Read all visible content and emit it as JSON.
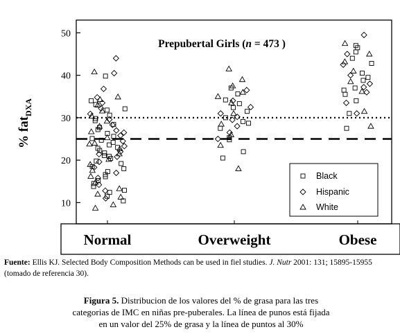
{
  "chart_data": {
    "type": "scatter",
    "title_main": "Prepubertal Girls (",
    "title_n": "n",
    "title_eq": " = 473 )",
    "ylabel_main": "% fat",
    "ylabel_sub": "DXA",
    "ylim": [
      5,
      53
    ],
    "yticks": [
      10,
      20,
      30,
      40,
      50
    ],
    "categories": [
      "Normal",
      "Overweight",
      "Obese"
    ],
    "reference_lines": [
      {
        "value": 30,
        "style": "dotted"
      },
      {
        "value": 25,
        "style": "dashed"
      }
    ],
    "legend": {
      "placement": "bottom-right",
      "entries": [
        {
          "label": "Black",
          "marker": "square"
        },
        {
          "label": "Hispanic",
          "marker": "diamond"
        },
        {
          "label": "White",
          "marker": "triangle"
        }
      ]
    },
    "series": [
      {
        "name": "Black",
        "marker": "square",
        "points": [
          [
            1,
            11.5
          ],
          [
            1,
            12.4
          ],
          [
            1,
            13.8
          ],
          [
            1,
            15.2
          ],
          [
            1,
            16.6
          ],
          [
            1,
            17.3
          ],
          [
            1,
            18.5
          ],
          [
            1,
            19.2
          ],
          [
            1,
            20.4
          ],
          [
            1,
            21.1
          ],
          [
            1,
            22.3
          ],
          [
            1,
            23.0
          ],
          [
            1,
            24.2
          ],
          [
            1,
            25.1
          ],
          [
            1,
            26.3
          ],
          [
            1,
            27.2
          ],
          [
            1,
            28.4
          ],
          [
            1,
            29.3
          ],
          [
            1,
            30.6
          ],
          [
            1,
            31.8
          ],
          [
            1,
            33.1
          ],
          [
            1,
            34.0
          ],
          [
            1,
            10.4
          ],
          [
            1,
            12.9
          ],
          [
            1,
            14.5
          ],
          [
            1,
            16.1
          ],
          [
            1,
            18.0
          ],
          [
            1,
            19.8
          ],
          [
            1,
            21.7
          ],
          [
            1,
            23.6
          ],
          [
            1,
            25.6
          ],
          [
            1,
            27.7
          ],
          [
            1,
            29.8
          ],
          [
            1,
            32.1
          ],
          [
            1,
            39.8
          ],
          [
            1,
            22.8
          ],
          [
            1,
            20.9
          ],
          [
            1,
            24.7
          ],
          [
            2,
            20.5
          ],
          [
            2,
            22.0
          ],
          [
            2,
            24.8
          ],
          [
            2,
            25.3
          ],
          [
            2,
            27.5
          ],
          [
            2,
            28.7
          ],
          [
            2,
            30.0
          ],
          [
            2,
            31.5
          ],
          [
            2,
            32.4
          ],
          [
            2,
            34.2
          ],
          [
            2,
            35.6
          ],
          [
            2,
            37.0
          ],
          [
            2,
            29.1
          ],
          [
            2,
            33.3
          ],
          [
            3,
            27.5
          ],
          [
            3,
            31.0
          ],
          [
            3,
            34.0
          ],
          [
            3,
            35.5
          ],
          [
            3,
            36.5
          ],
          [
            3,
            37.0
          ],
          [
            3,
            38.8
          ],
          [
            3,
            40.5
          ],
          [
            3,
            42.8
          ],
          [
            3,
            44.0
          ],
          [
            3,
            45.5
          ],
          [
            3,
            46.5
          ],
          [
            3,
            47.0
          ],
          [
            3,
            39.5
          ]
        ]
      },
      {
        "name": "Hispanic",
        "marker": "diamond",
        "points": [
          [
            1,
            11.0
          ],
          [
            1,
            12.8
          ],
          [
            1,
            14.2
          ],
          [
            1,
            15.8
          ],
          [
            1,
            17.0
          ],
          [
            1,
            18.3
          ],
          [
            1,
            19.6
          ],
          [
            1,
            20.8
          ],
          [
            1,
            22.0
          ],
          [
            1,
            23.3
          ],
          [
            1,
            24.5
          ],
          [
            1,
            25.8
          ],
          [
            1,
            27.0
          ],
          [
            1,
            28.3
          ],
          [
            1,
            29.6
          ],
          [
            1,
            30.9
          ],
          [
            1,
            32.2
          ],
          [
            1,
            33.5
          ],
          [
            1,
            34.8
          ],
          [
            1,
            36.8
          ],
          [
            1,
            40.5
          ],
          [
            1,
            44.0
          ],
          [
            1,
            21.4
          ],
          [
            1,
            26.5
          ],
          [
            2,
            25.0
          ],
          [
            2,
            26.5
          ],
          [
            2,
            28.0
          ],
          [
            2,
            29.5
          ],
          [
            2,
            31.0
          ],
          [
            2,
            32.5
          ],
          [
            2,
            34.0
          ],
          [
            2,
            36.5
          ],
          [
            2,
            30.2
          ],
          [
            3,
            31.0
          ],
          [
            3,
            33.5
          ],
          [
            3,
            36.0
          ],
          [
            3,
            38.0
          ],
          [
            3,
            40.0
          ],
          [
            3,
            42.5
          ],
          [
            3,
            45.0
          ],
          [
            3,
            49.5
          ],
          [
            3,
            37.2
          ]
        ]
      },
      {
        "name": "White",
        "marker": "triangle",
        "points": [
          [
            1,
            9.5
          ],
          [
            1,
            11.3
          ],
          [
            1,
            12.0
          ],
          [
            1,
            13.3
          ],
          [
            1,
            14.8
          ],
          [
            1,
            16.2
          ],
          [
            1,
            17.6
          ],
          [
            1,
            19.0
          ],
          [
            1,
            20.2
          ],
          [
            1,
            21.5
          ],
          [
            1,
            22.7
          ],
          [
            1,
            24.0
          ],
          [
            1,
            25.3
          ],
          [
            1,
            26.7
          ],
          [
            1,
            28.0
          ],
          [
            1,
            29.2
          ],
          [
            1,
            30.4
          ],
          [
            1,
            31.6
          ],
          [
            1,
            33.0
          ],
          [
            1,
            34.3
          ],
          [
            1,
            34.9
          ],
          [
            1,
            40.8
          ],
          [
            1,
            8.7
          ],
          [
            1,
            23.8
          ],
          [
            2,
            18.0
          ],
          [
            2,
            23.5
          ],
          [
            2,
            26.0
          ],
          [
            2,
            28.5
          ],
          [
            2,
            31.0
          ],
          [
            2,
            33.5
          ],
          [
            2,
            35.0
          ],
          [
            2,
            36.0
          ],
          [
            2,
            37.5
          ],
          [
            2,
            39.0
          ],
          [
            2,
            41.5
          ],
          [
            3,
            28.0
          ],
          [
            3,
            31.5
          ],
          [
            3,
            36.2
          ],
          [
            3,
            38.5
          ],
          [
            3,
            41.0
          ],
          [
            3,
            43.2
          ],
          [
            3,
            45.0
          ],
          [
            3,
            47.5
          ]
        ]
      }
    ]
  },
  "source_note": {
    "label": "Fuente:",
    "text_a": " Ellis KJ. Selected Body Composition Methods can be used in fiel studies. ",
    "journal": "J. Nutr",
    "text_b": " 2001: 131; 15895-15955 (tomado de referencia 30)."
  },
  "caption": {
    "label": "Figura 5.",
    "line1": " Distribucion de los valores del % de grasa para las tres",
    "line2": "categorias de IMC en niñas pre-puberales. La línea de punos está fijada",
    "line3": "en un valor del 25% de grasa y la línea de puntos al 30%"
  }
}
